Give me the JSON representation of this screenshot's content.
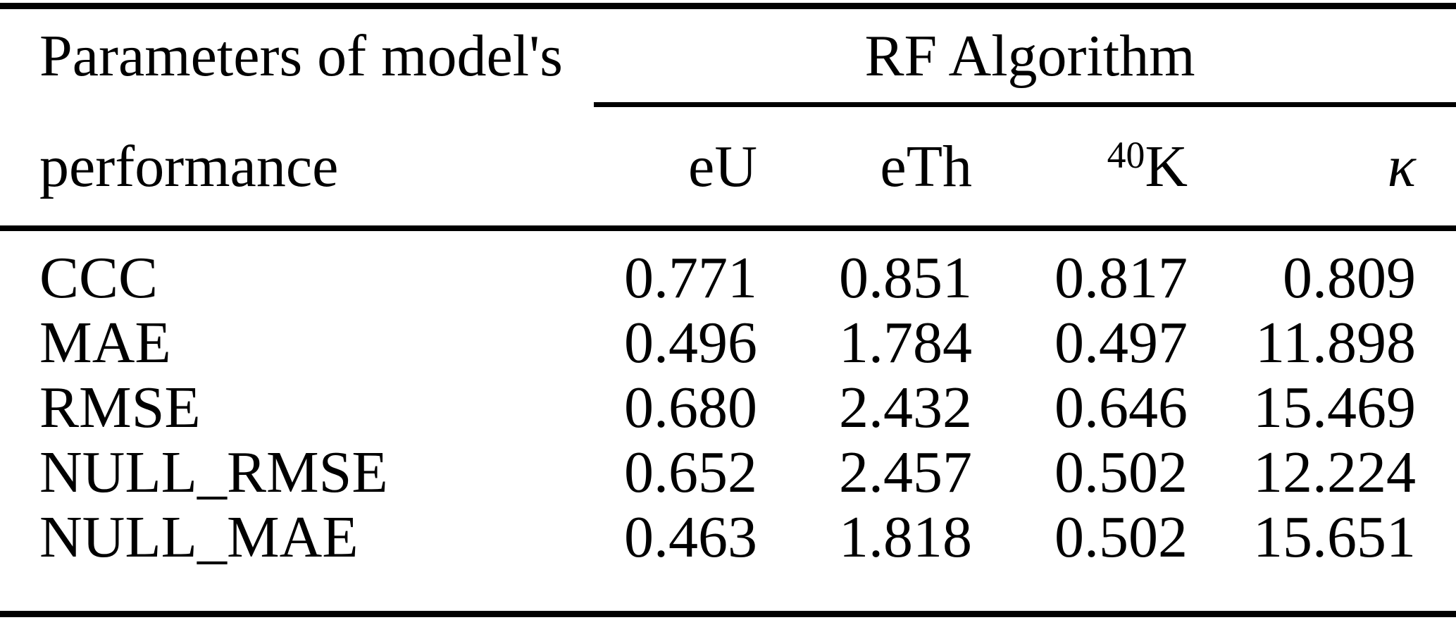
{
  "colors": {
    "background": "#ffffff",
    "text": "#000000",
    "rule": "#000000"
  },
  "table": {
    "stub_header": {
      "line1": "Parameters of model's",
      "line2": "performance"
    },
    "group_header": "RF Algorithm",
    "columns": [
      {
        "label": "eU"
      },
      {
        "label": "eTh"
      },
      {
        "label": "K",
        "superscript": "40"
      },
      {
        "label": "κ"
      }
    ],
    "rows": [
      {
        "label": "CCC",
        "values": [
          "0.771",
          "0.851",
          "0.817",
          "0.809"
        ]
      },
      {
        "label": "MAE",
        "values": [
          "0.496",
          "1.784",
          "0.497",
          "11.898"
        ]
      },
      {
        "label": "RMSE",
        "values": [
          "0.680",
          "2.432",
          "0.646",
          "15.469"
        ]
      },
      {
        "label": "NULL_RMSE",
        "values": [
          "0.652",
          "2.457",
          "0.502",
          "12.224"
        ]
      },
      {
        "label": "NULL_MAE",
        "values": [
          "0.463",
          "1.818",
          "0.502",
          "15.651"
        ]
      }
    ]
  }
}
